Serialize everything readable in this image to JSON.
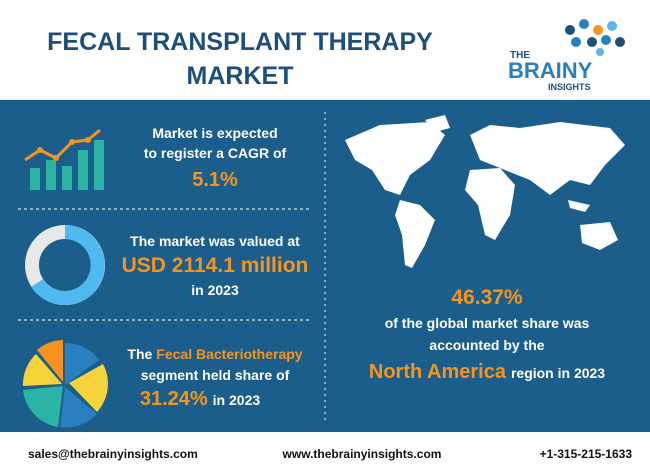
{
  "header": {
    "title_lines": [
      "FECAL TRANSPLANT THERAPY",
      "MARKET"
    ],
    "logo": [
      "THE",
      "BRAINY",
      "INSIGHTS"
    ]
  },
  "cagr": {
    "lines": [
      "Market is expected",
      "to register a CAGR of"
    ],
    "value": "5.1%"
  },
  "valuation": {
    "line1": "The market was valued at",
    "value": "USD 2114.1 million",
    "line3": "in 2023"
  },
  "segment": {
    "prefix": "The",
    "highlight": "Fecal Bacteriotherapy",
    "line2": "segment held share of",
    "value": "31.24%",
    "suffix": "in 2023"
  },
  "region": {
    "value": "46.37%",
    "line1": "of the global market share was",
    "line2": "accounted by the",
    "highlight": "North America",
    "suffix": "region in 2023"
  },
  "footer": {
    "email": "sales@thebrainyinsights.com",
    "website": "www.thebrainyinsights.com",
    "phone": "+1-315-215-1633"
  }
}
